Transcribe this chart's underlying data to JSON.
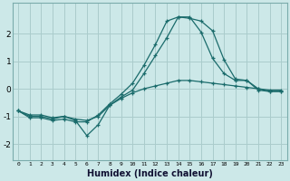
{
  "xlabel": "Humidex (Indice chaleur)",
  "bg_color": "#cce8e8",
  "grid_color": "#aacccc",
  "line_color": "#1a6b6b",
  "xlim": [
    -0.5,
    23.5
  ],
  "ylim": [
    -2.6,
    3.1
  ],
  "yticks": [
    -2,
    -1,
    0,
    1,
    2
  ],
  "xticks": [
    0,
    1,
    2,
    3,
    4,
    5,
    6,
    7,
    8,
    9,
    10,
    11,
    12,
    13,
    14,
    15,
    16,
    17,
    18,
    19,
    20,
    21,
    22,
    23
  ],
  "series1_x": [
    0,
    1,
    2,
    3,
    4,
    5,
    6,
    7,
    8,
    9,
    10,
    11,
    12,
    13,
    14,
    15,
    16,
    17,
    18,
    19,
    20,
    21,
    22,
    23
  ],
  "series1_y": [
    -0.8,
    -1.0,
    -1.0,
    -1.1,
    -1.0,
    -1.15,
    -1.7,
    -1.3,
    -0.6,
    -0.3,
    -0.05,
    0.55,
    1.2,
    1.85,
    2.6,
    2.55,
    2.45,
    2.1,
    1.05,
    0.35,
    0.3,
    0.0,
    -0.1,
    -0.1
  ],
  "series2_x": [
    0,
    1,
    2,
    3,
    4,
    5,
    6,
    7,
    8,
    9,
    10,
    11,
    12,
    13,
    14,
    15,
    16,
    17,
    18,
    19,
    20,
    21,
    22,
    23
  ],
  "series2_y": [
    -0.8,
    -1.05,
    -1.05,
    -1.15,
    -1.1,
    -1.2,
    -1.2,
    -0.95,
    -0.55,
    -0.2,
    0.2,
    0.85,
    1.6,
    2.45,
    2.6,
    2.6,
    2.05,
    1.1,
    0.55,
    0.3,
    0.3,
    -0.05,
    -0.1,
    -0.1
  ],
  "series3_x": [
    0,
    1,
    2,
    3,
    4,
    5,
    6,
    7,
    8,
    9,
    10,
    11,
    12,
    13,
    14,
    15,
    16,
    17,
    18,
    19,
    20,
    21,
    22,
    23
  ],
  "series3_y": [
    -0.8,
    -0.95,
    -0.95,
    -1.05,
    -1.0,
    -1.1,
    -1.15,
    -1.0,
    -0.6,
    -0.35,
    -0.15,
    -0.0,
    0.1,
    0.2,
    0.3,
    0.3,
    0.25,
    0.2,
    0.15,
    0.1,
    0.05,
    0.0,
    -0.05,
    -0.05
  ]
}
